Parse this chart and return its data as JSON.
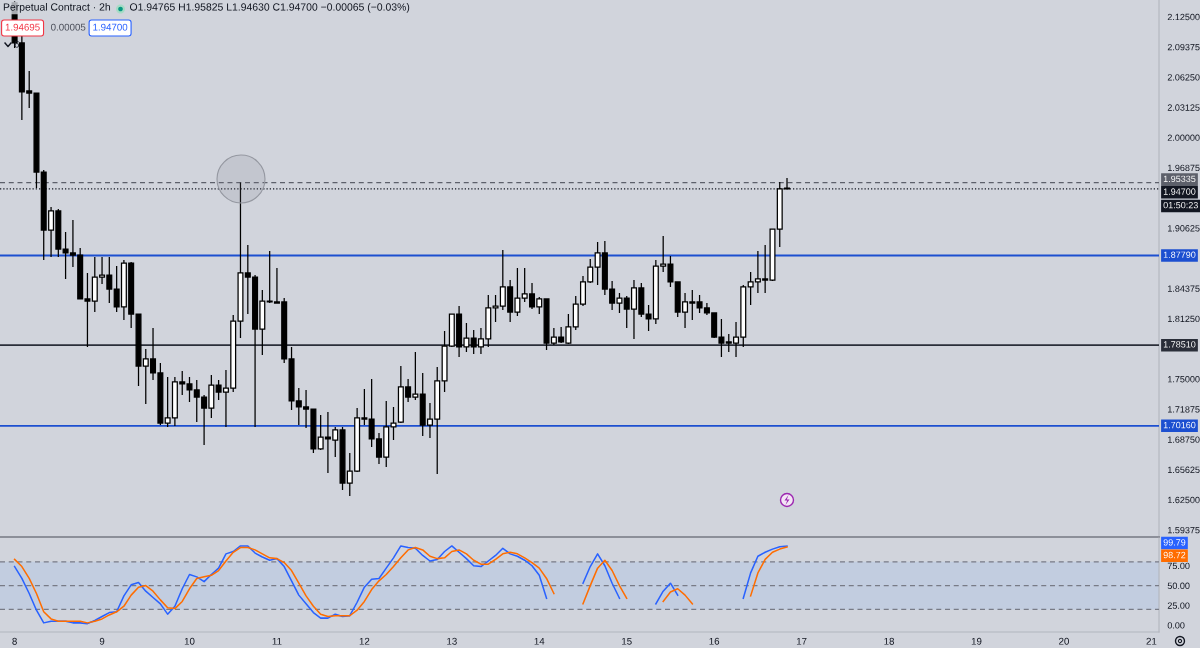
{
  "chart_data": [
    {
      "type": "candlestick",
      "title": "Perpetual Contract · 2h",
      "annotations": [
        "O1.94765 H1.95825 L1.94630 C1.94700 −0.00065 (−0.03%)",
        "1.94695",
        "0.00005",
        "1.94700",
        "6",
        "01:50:23"
      ],
      "color": "#000000",
      "x": [
        8,
        8.083,
        8.167,
        8.25,
        8.333,
        8.417,
        8.5,
        8.583,
        8.667,
        8.75,
        8.833,
        8.917,
        9,
        9.083,
        9.167,
        9.25,
        9.333,
        9.417,
        9.5,
        9.583,
        9.667,
        9.75,
        9.833,
        9.917,
        10,
        10.083,
        10.167,
        10.25,
        10.333,
        10.417,
        10.5,
        10.583,
        10.667,
        10.75,
        10.833,
        10.917,
        11,
        11.083,
        11.167,
        11.25,
        11.333,
        11.417,
        11.5,
        11.583,
        11.667,
        11.75,
        11.833,
        11.917,
        12,
        12.083,
        12.167,
        12.25,
        12.333,
        12.417,
        12.5,
        12.583,
        12.667,
        12.75,
        12.833,
        12.917,
        13,
        13.083,
        13.167,
        13.25,
        13.333,
        13.417,
        13.5,
        13.583,
        13.667,
        13.75,
        13.833,
        13.917,
        14,
        14.083,
        14.167,
        14.25,
        14.333,
        14.417,
        14.5,
        14.583,
        14.667,
        14.75,
        14.833,
        14.917,
        15,
        15.083,
        15.167,
        15.25,
        15.333,
        15.417,
        15.5,
        15.583,
        15.667,
        15.75,
        15.833,
        15.917,
        16,
        16.083,
        16.167,
        16.25,
        16.333,
        16.417,
        16.5,
        16.583,
        16.667,
        16.75,
        16.833
      ],
      "ohlc": [
        [
          2.1393,
          2.1414,
          2.0927,
          2.0979
        ],
        [
          2.0979,
          2.1062,
          2.0182,
          2.0472
        ],
        [
          2.0482,
          2.0689,
          2.0306,
          2.0461
        ],
        [
          2.0461,
          2.0461,
          1.9478,
          1.9643
        ],
        [
          1.9643,
          1.9664,
          1.8733,
          1.9043
        ],
        [
          1.9043,
          1.9281,
          1.8764,
          1.924
        ],
        [
          1.924,
          1.926,
          1.8764,
          1.8846
        ],
        [
          1.8846,
          1.9022,
          1.8536,
          1.8805
        ],
        [
          1.8805,
          1.9147,
          1.866,
          1.8784
        ],
        [
          1.8784,
          1.8857,
          1.8329,
          1.8329
        ],
        [
          1.8329,
          1.8598,
          1.7832,
          1.8308
        ],
        [
          1.8308,
          1.8764,
          1.8194,
          1.8556
        ],
        [
          1.8556,
          1.8764,
          1.8484,
          1.8577
        ],
        [
          1.8577,
          1.8764,
          1.8287,
          1.8432
        ],
        [
          1.8432,
          1.867,
          1.8194,
          1.8246
        ],
        [
          1.8246,
          1.8733,
          1.8111,
          1.8701
        ],
        [
          1.8701,
          1.8712,
          1.8029,
          1.8173
        ],
        [
          1.8173,
          1.8173,
          1.7428,
          1.7635
        ],
        [
          1.7635,
          1.7811,
          1.7242,
          1.7708
        ],
        [
          1.7708,
          1.8029,
          1.749,
          1.7563
        ],
        [
          1.7563,
          1.7666,
          1.7024,
          1.7045
        ],
        [
          1.7045,
          1.7521,
          1.7004,
          1.7097
        ],
        [
          1.7097,
          1.7521,
          1.7014,
          1.747
        ],
        [
          1.747,
          1.7583,
          1.7335,
          1.7449
        ],
        [
          1.7449,
          1.7521,
          1.7263,
          1.7387
        ],
        [
          1.7387,
          1.749,
          1.7055,
          1.7314
        ],
        [
          1.7314,
          1.7335,
          1.6817,
          1.72
        ],
        [
          1.72,
          1.7542,
          1.7097,
          1.7438
        ],
        [
          1.7438,
          1.749,
          1.7283,
          1.7366
        ],
        [
          1.7366,
          1.7594,
          1.7004,
          1.7407
        ],
        [
          1.7407,
          1.8163,
          1.7366,
          1.8101
        ],
        [
          1.8101,
          1.9534,
          1.7925,
          1.8598
        ],
        [
          1.8598,
          1.8888,
          1.8173,
          1.8556
        ],
        [
          1.8556,
          1.8577,
          1.7004,
          1.8018
        ],
        [
          1.8018,
          1.8422,
          1.7749,
          1.8308
        ],
        [
          1.8308,
          1.8826,
          1.8287,
          1.8298
        ],
        [
          1.8298,
          1.865,
          1.8287,
          1.8287
        ],
        [
          1.8298,
          1.8339,
          1.7666,
          1.7708
        ],
        [
          1.7708,
          1.7832,
          1.718,
          1.7273
        ],
        [
          1.7273,
          1.7407,
          1.7024,
          1.7211
        ],
        [
          1.7211,
          1.7387,
          1.6993,
          1.719
        ],
        [
          1.719,
          1.719,
          1.6735,
          1.6776
        ],
        [
          1.6776,
          1.7128,
          1.6766,
          1.69
        ],
        [
          1.69,
          1.7159,
          1.6528,
          1.688
        ],
        [
          1.6869,
          1.7004,
          1.6693,
          1.6973
        ],
        [
          1.6973,
          1.7004,
          1.6351,
          1.6424
        ],
        [
          1.6424,
          1.6735,
          1.6289,
          1.6548
        ],
        [
          1.6548,
          1.72,
          1.6538,
          1.7097
        ],
        [
          1.7097,
          1.7397,
          1.7024,
          1.7086
        ],
        [
          1.7086,
          1.7501,
          1.6797,
          1.688
        ],
        [
          1.688,
          1.6942,
          1.6621,
          1.6693
        ],
        [
          1.6693,
          1.7273,
          1.659,
          1.7004
        ],
        [
          1.7004,
          1.7211,
          1.6869,
          1.7045
        ],
        [
          1.7055,
          1.7635,
          1.7045,
          1.7418
        ],
        [
          1.7418,
          1.7501,
          1.7263,
          1.7314
        ],
        [
          1.7314,
          1.778,
          1.7283,
          1.7345
        ],
        [
          1.7345,
          1.7563,
          1.6911,
          1.7024
        ],
        [
          1.7024,
          1.7252,
          1.689,
          1.7086
        ],
        [
          1.7086,
          1.7625,
          1.6517,
          1.748
        ],
        [
          1.748,
          1.7998,
          1.7366,
          1.7842
        ],
        [
          1.7842,
          1.8173,
          1.7832,
          1.8173
        ],
        [
          1.8173,
          1.8256,
          1.7728,
          1.7832
        ],
        [
          1.7832,
          1.808,
          1.778,
          1.7925
        ],
        [
          1.7925,
          1.8008,
          1.7759,
          1.7832
        ],
        [
          1.7832,
          1.8029,
          1.7759,
          1.7915
        ],
        [
          1.7915,
          1.837,
          1.7832,
          1.8236
        ],
        [
          1.8236,
          1.837,
          1.8091,
          1.8256
        ],
        [
          1.8256,
          1.8836,
          1.8215,
          1.8453
        ],
        [
          1.8453,
          1.8525,
          1.8091,
          1.8194
        ],
        [
          1.8194,
          1.865,
          1.8153,
          1.8339
        ],
        [
          1.8339,
          1.865,
          1.8298,
          1.8381
        ],
        [
          1.8381,
          1.8494,
          1.8225,
          1.8246
        ],
        [
          1.8246,
          1.8349,
          1.8173,
          1.8329
        ],
        [
          1.8329,
          1.8329,
          1.7801,
          1.7873
        ],
        [
          1.7873,
          1.8029,
          1.7853,
          1.7935
        ],
        [
          1.7935,
          1.8039,
          1.7873,
          1.7884
        ],
        [
          1.7873,
          1.8173,
          1.7863,
          1.8039
        ],
        [
          1.8039,
          1.836,
          1.8008,
          1.8277
        ],
        [
          1.8277,
          1.8567,
          1.8256,
          1.8505
        ],
        [
          1.8505,
          1.8743,
          1.8494,
          1.866
        ],
        [
          1.866,
          1.8919,
          1.8474,
          1.8805
        ],
        [
          1.8805,
          1.8929,
          1.837,
          1.8432
        ],
        [
          1.8432,
          1.8515,
          1.8215,
          1.8287
        ],
        [
          1.8287,
          1.8391,
          1.8184,
          1.8339
        ],
        [
          1.8339,
          1.836,
          1.8029,
          1.8225
        ],
        [
          1.8225,
          1.8525,
          1.7915,
          1.8443
        ],
        [
          1.8443,
          1.8494,
          1.8142,
          1.8173
        ],
        [
          1.8173,
          1.8267,
          1.7998,
          1.8122
        ],
        [
          1.8122,
          1.8733,
          1.807,
          1.867
        ],
        [
          1.867,
          1.8981,
          1.8608,
          1.8691
        ],
        [
          1.8691,
          1.8774,
          1.8453,
          1.8505
        ],
        [
          1.8505,
          1.8505,
          1.8142,
          1.8194
        ],
        [
          1.8194,
          1.8391,
          1.8029,
          1.8298
        ],
        [
          1.8298,
          1.8422,
          1.8111,
          1.8287
        ],
        [
          1.8298,
          1.837,
          1.8184,
          1.8236
        ],
        [
          1.8236,
          1.8287,
          1.8163,
          1.8184
        ],
        [
          1.8184,
          1.8184,
          1.7925,
          1.7935
        ],
        [
          1.7935,
          1.8122,
          1.7728,
          1.7873
        ],
        [
          1.7884,
          1.7967,
          1.778,
          1.7873
        ],
        [
          1.7873,
          1.8091,
          1.7728,
          1.7935
        ],
        [
          1.7935,
          1.8474,
          1.7832,
          1.8453
        ],
        [
          1.8453,
          1.8608,
          1.8267,
          1.8505
        ],
        [
          1.8505,
          1.8826,
          1.8391,
          1.8536
        ],
        [
          1.8536,
          1.8888,
          1.8391,
          1.8525
        ],
        [
          1.8525,
          1.9053,
          1.8515,
          1.9053
        ],
        [
          1.9053,
          1.954,
          1.8867,
          1.9468
        ],
        [
          1.94765,
          1.95825,
          1.9463,
          1.947
        ]
      ],
      "xlim": [
        7.833,
        21.087
      ],
      "xticks": [
        8,
        9,
        10,
        11,
        12,
        13,
        14,
        15,
        16,
        17,
        18,
        19,
        20,
        21
      ],
      "ylim": [
        1.5865,
        2.1424
      ],
      "yticks": [
        {
          "value": 2.125,
          "label": "2.12500"
        },
        {
          "value": 2.09375,
          "label": "2.09375"
        },
        {
          "value": 2.0625,
          "label": "2.06250"
        },
        {
          "value": 2.03125,
          "label": "2.03125"
        },
        {
          "value": 2,
          "label": "2.00000"
        },
        {
          "value": 1.96875,
          "label": "1.96875"
        },
        {
          "value": 1.90625,
          "label": "1.90625"
        },
        {
          "value": 1.84375,
          "label": "1.84375"
        },
        {
          "value": 1.8125,
          "label": "1.81250"
        },
        {
          "value": 1.75,
          "label": "1.75000"
        },
        {
          "value": 1.71875,
          "label": "1.71875"
        },
        {
          "value": 1.6875,
          "label": "1.68750"
        },
        {
          "value": 1.65625,
          "label": "1.65625"
        },
        {
          "value": 1.625,
          "label": "1.62500"
        },
        {
          "value": 1.59375,
          "label": "1.59375"
        }
      ],
      "tick_labels": "y",
      "ref_lines": [
        {
          "axis": "y",
          "value": 1.95335,
          "label": "1.95335",
          "color": "#5d606b",
          "line_style": "dashed"
        },
        {
          "axis": "y",
          "value": 1.947,
          "label": "1.94700",
          "color": "#131722",
          "line_style": "dotted"
        },
        {
          "axis": "y",
          "value": 1.8779,
          "label": "1.87790",
          "color": "#1c4fd0",
          "line_style": "solid"
        },
        {
          "axis": "y",
          "value": 1.7851,
          "label": "1.78510",
          "color": "#2a2e39",
          "line_style": "solid"
        },
        {
          "axis": "y",
          "value": 1.7016,
          "label": "1.70160",
          "color": "#1c4fd0",
          "line_style": "solid"
        }
      ]
    },
    {
      "type": "line",
      "annotations": [
        "99.79",
        "98.72"
      ],
      "x": [
        8,
        8.083,
        8.167,
        8.25,
        8.333,
        8.417,
        8.5,
        8.583,
        8.667,
        8.75,
        8.833,
        8.917,
        9,
        9.083,
        9.167,
        9.25,
        9.333,
        9.417,
        9.5,
        9.583,
        9.667,
        9.75,
        9.833,
        9.917,
        10,
        10.083,
        10.167,
        10.25,
        10.333,
        10.417,
        10.5,
        10.583,
        10.667,
        10.75,
        10.833,
        10.917,
        11,
        11.083,
        11.167,
        11.25,
        11.333,
        11.417,
        11.5,
        11.583,
        11.667,
        11.75,
        11.833,
        11.917,
        12,
        12.083,
        12.167,
        12.25,
        12.333,
        12.417,
        12.5,
        12.583,
        12.667,
        12.75,
        12.833,
        12.917,
        13,
        13.083,
        13.167,
        13.25,
        13.333,
        13.417,
        13.5,
        13.583,
        13.667,
        13.75,
        13.833,
        13.917,
        14,
        14.083,
        14.167,
        14.25,
        14.333,
        14.417,
        14.5,
        14.583,
        14.667,
        14.75,
        14.833,
        14.917,
        15,
        15.083,
        15.167,
        15.25,
        15.333,
        15.417,
        15.5,
        15.583,
        15.667,
        15.75,
        15.833,
        15.917,
        16,
        16.083,
        16.167,
        16.25,
        16.333,
        16.417,
        16.5,
        16.583,
        16.667,
        16.75,
        16.833
      ],
      "series": [
        {
          "color": "#2962ff",
          "values": [
            74,
            59,
            40,
            19,
            3,
            5,
            5,
            5,
            3,
            3,
            2,
            6,
            11,
            16,
            17,
            37,
            51,
            54,
            43,
            35,
            27,
            14,
            24,
            46,
            64,
            61,
            55,
            64,
            72,
            90,
            93,
            100,
            100,
            91,
            86,
            82,
            84,
            74,
            56,
            38,
            27,
            16,
            9,
            9,
            14,
            11,
            12,
            29,
            48,
            58,
            59,
            72,
            85,
            100,
            98,
            97,
            88,
            81,
            83,
            93,
            100,
            92,
            84,
            75,
            74,
            81,
            88,
            97,
            90,
            87,
            82,
            75,
            63,
            34,
            null,
            null,
            null,
            null,
            53,
            74,
            90,
            75,
            53,
            34,
            null,
            null,
            null,
            null,
            27,
            43,
            53,
            38,
            null,
            null,
            null,
            null,
            null,
            null,
            null,
            null,
            34,
            66,
            87,
            92,
            96,
            99,
            99.79
          ]
        },
        {
          "color": "#ff6d00",
          "values": [
            83,
            74,
            59,
            40,
            17,
            8,
            5,
            5,
            5,
            5,
            3,
            5,
            8,
            13,
            17,
            24,
            38,
            48,
            50,
            43,
            32,
            22,
            21,
            30,
            46,
            59,
            61,
            63,
            69,
            81,
            92,
            98,
            98,
            95,
            90,
            85,
            84,
            79,
            69,
            53,
            37,
            24,
            14,
            11,
            12,
            12,
            12,
            19,
            30,
            45,
            56,
            64,
            74,
            85,
            95,
            98,
            95,
            87,
            84,
            85,
            93,
            95,
            90,
            82,
            77,
            77,
            83,
            90,
            92,
            90,
            85,
            79,
            72,
            59,
            40,
            null,
            null,
            null,
            27,
            50,
            72,
            82,
            69,
            50,
            34,
            null,
            null,
            null,
            null,
            30,
            42,
            46,
            38,
            27,
            null,
            null,
            null,
            null,
            null,
            null,
            null,
            37,
            66,
            83,
            92,
            96,
            98.72
          ]
        }
      ],
      "xlim": [
        7.833,
        21.087
      ],
      "xticks": [
        8,
        9,
        10,
        11,
        12,
        13,
        14,
        15,
        16,
        17,
        18,
        19,
        20,
        21
      ],
      "ylim": [
        -8.5,
        110
      ],
      "yticks": [
        {
          "value": 0,
          "label": "0.00"
        },
        {
          "value": 25,
          "label": "25.00"
        },
        {
          "value": 50,
          "label": "50.00"
        },
        {
          "value": 75,
          "label": "75.00"
        }
      ],
      "bands": [
        {
          "axis": "y",
          "from": 20,
          "to": 80,
          "color": "#c2cde0"
        }
      ],
      "ref_lines": [
        {
          "axis": "y",
          "value": 80,
          "color": "#787b86",
          "line_style": "dashed"
        },
        {
          "axis": "y",
          "value": 50,
          "color": "#787b86",
          "line_style": "dashed"
        },
        {
          "axis": "y",
          "value": 20,
          "color": "#787b86",
          "line_style": "dashed"
        }
      ]
    }
  ]
}
